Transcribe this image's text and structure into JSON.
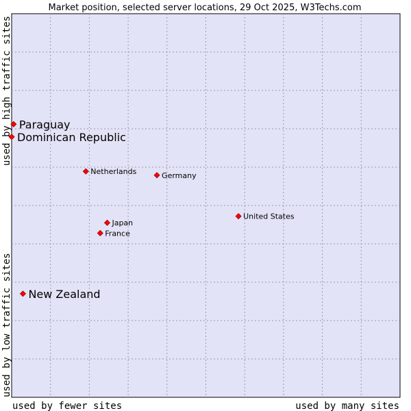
{
  "chart_data": {
    "type": "scatter",
    "title": "Market position, selected server locations, 29 Oct 2025, W3Techs.com",
    "x_axis": {
      "left_label": "used by fewer sites",
      "right_label": "used by many sites",
      "range": [
        0,
        100
      ]
    },
    "y_axis": {
      "bottom_label": "used by low traffic sites",
      "top_label": "used by high traffic sites",
      "range": [
        0,
        100
      ]
    },
    "grid": true,
    "points": [
      {
        "name": "Paraguay",
        "x": 0.5,
        "y": 71.2,
        "highlight": true
      },
      {
        "name": "Dominican Republic",
        "x": 0.0,
        "y": 67.9,
        "highlight": true
      },
      {
        "name": "Netherlands",
        "x": 19.1,
        "y": 58.9,
        "highlight": false
      },
      {
        "name": "Germany",
        "x": 37.4,
        "y": 57.9,
        "highlight": false
      },
      {
        "name": "United States",
        "x": 58.4,
        "y": 47.2,
        "highlight": false
      },
      {
        "name": "Japan",
        "x": 24.6,
        "y": 45.5,
        "highlight": false
      },
      {
        "name": "France",
        "x": 22.8,
        "y": 42.8,
        "highlight": false
      },
      {
        "name": "New Zealand",
        "x": 2.9,
        "y": 27.0,
        "highlight": true
      }
    ]
  }
}
